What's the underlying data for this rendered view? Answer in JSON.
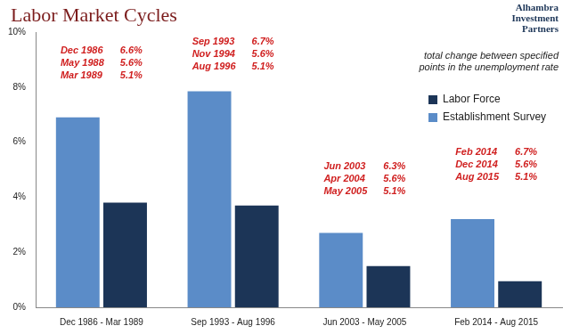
{
  "chart_data": {
    "type": "bar",
    "title": "Labor Market Cycles",
    "logo_text": [
      "Alhambra",
      "Investment",
      "Partners"
    ],
    "note": [
      "total change between specified",
      "points in the unemployment rate"
    ],
    "categories": [
      "Dec 1986 - Mar 1989",
      "Sep 1993 - Aug 1996",
      "Jun 2003 - May 2005",
      "Feb 2014 - Aug 2015"
    ],
    "series": [
      {
        "name": "Establishment Survey",
        "color": "#5b8cc8",
        "values": [
          6.9,
          7.85,
          2.7,
          3.2
        ]
      },
      {
        "name": "Labor Force",
        "color": "#1c3557",
        "values": [
          3.8,
          3.7,
          1.5,
          0.95
        ]
      }
    ],
    "ylim": [
      0,
      10
    ],
    "yticks": [
      {
        "value": 0,
        "label": "0%"
      },
      {
        "value": 2,
        "label": "2%"
      },
      {
        "value": 4,
        "label": "4%"
      },
      {
        "value": 6,
        "label": "6%"
      },
      {
        "value": 8,
        "label": "8%"
      },
      {
        "value": 10,
        "label": "10%"
      }
    ],
    "grid": false,
    "legend": "right",
    "annotations": [
      {
        "category": "Dec 1986 - Mar 1989",
        "points": [
          {
            "date": "Dec 1986",
            "rate": "6.6%"
          },
          {
            "date": "May 1988",
            "rate": "5.6%"
          },
          {
            "date": "Mar 1989",
            "rate": "5.1%"
          }
        ]
      },
      {
        "category": "Sep 1993 - Aug 1996",
        "points": [
          {
            "date": "Sep 1993",
            "rate": "6.7%"
          },
          {
            "date": "Nov 1994",
            "rate": "5.6%"
          },
          {
            "date": "Aug 1996",
            "rate": "5.1%"
          }
        ]
      },
      {
        "category": "Jun 2003 - May 2005",
        "points": [
          {
            "date": "Jun 2003",
            "rate": "6.3%"
          },
          {
            "date": "Apr 2004",
            "rate": "5.6%"
          },
          {
            "date": "May 2005",
            "rate": "5.1%"
          }
        ]
      },
      {
        "category": "Feb 2014 - Aug 2015",
        "points": [
          {
            "date": "Feb 2014",
            "rate": "6.7%"
          },
          {
            "date": "Dec 2014",
            "rate": "5.6%"
          },
          {
            "date": "Aug 2015",
            "rate": "5.1%"
          }
        ]
      }
    ]
  }
}
